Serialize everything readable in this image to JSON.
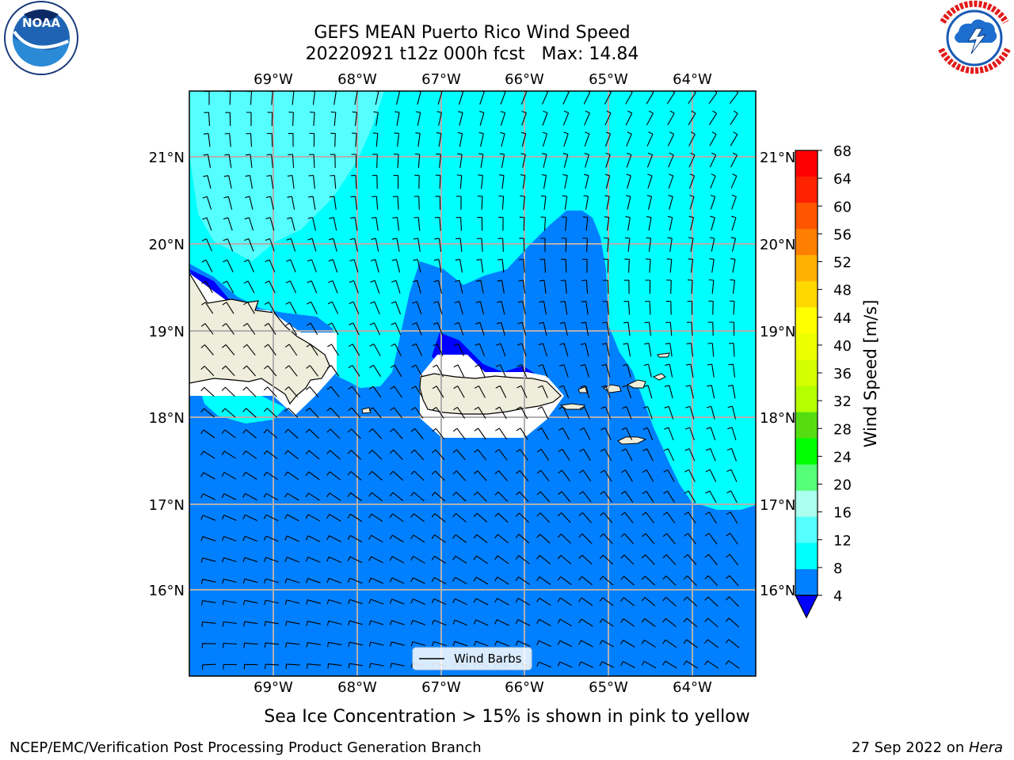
{
  "title": {
    "line1": "GEFS MEAN Puerto Rico Wind Speed",
    "line2": "20220921 t12z 000h fcst   Max: 14.84"
  },
  "logos": {
    "left": {
      "name": "NOAA",
      "text": "NOAA",
      "ring_text": "NATIONAL OCEANIC AND ATMOSPHERIC ADMINISTRATION · U.S. DEPARTMENT OF COMMERCE"
    },
    "right": {
      "name": "National Weather Service",
      "ring_text": "NATIONAL WEATHER SERVICE"
    }
  },
  "map": {
    "lon_labels": [
      "69°W",
      "68°W",
      "67°W",
      "66°W",
      "65°W",
      "64°W"
    ],
    "lat_labels": [
      "21°N",
      "20°N",
      "19°N",
      "18°N",
      "17°N",
      "16°N"
    ],
    "legend_label": "Wind Barbs"
  },
  "colorbar": {
    "label": "Wind Speed [m/s]",
    "ticks": [
      "68",
      "64",
      "60",
      "56",
      "52",
      "48",
      "44",
      "40",
      "36",
      "32",
      "28",
      "24",
      "20",
      "16",
      "12",
      "8",
      "4"
    ],
    "colors": [
      "#ff0000",
      "#ff2200",
      "#ff5500",
      "#ff8000",
      "#ffb000",
      "#ffd800",
      "#ffff00",
      "#eeff00",
      "#d4ff00",
      "#b4ff00",
      "#55dd11",
      "#00ff00",
      "#55ff77",
      "#aaffee",
      "#55ffff",
      "#00ffff",
      "#0080ff"
    ],
    "under_color": "#0000ff"
  },
  "note": "Sea Ice Concentration > 15% is shown in pink to yellow",
  "footer": {
    "left": "NCEP/EMC/Verification Post Processing Product Generation Branch",
    "right_prefix": "27 Sep 2022 on ",
    "right_machine": "Hera"
  }
}
